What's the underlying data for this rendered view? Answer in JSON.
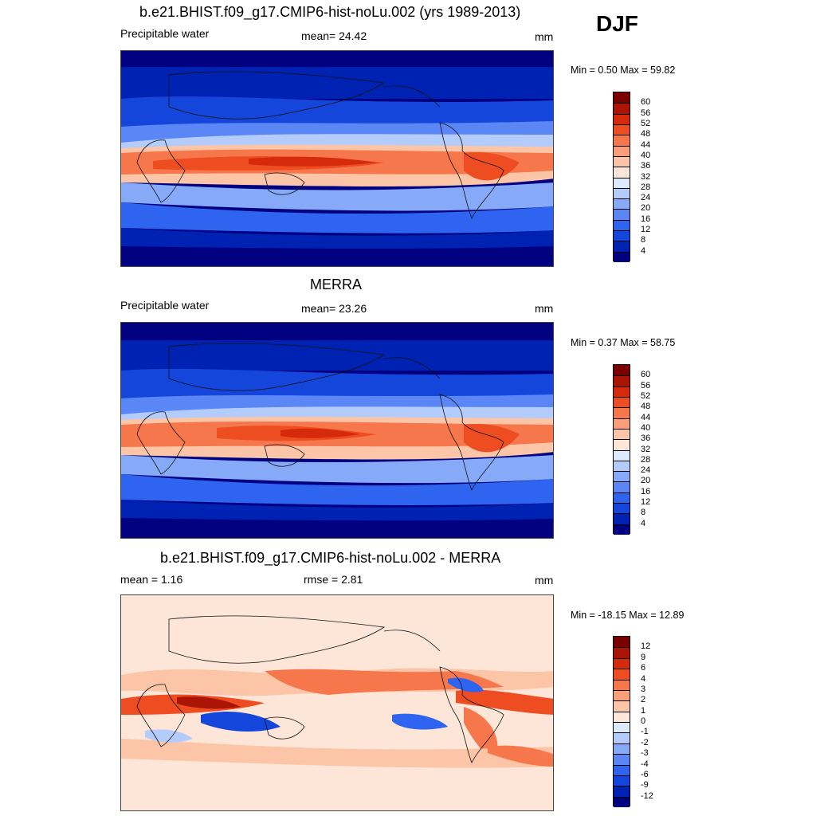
{
  "season": "DJF",
  "panels": [
    {
      "id": "model",
      "title": "b.e21.BHIST.f09_g17.CMIP6-hist-noLu.002 (yrs 1989-2013)",
      "left_label": "Precipitable water",
      "center_label": "mean=  24.42",
      "right_label": "mm",
      "minmax": "Min =   0.50 Max =  59.82",
      "colorbar": {
        "colors": [
          "#000080",
          "#0022b3",
          "#1446dc",
          "#2e64f0",
          "#5a87f5",
          "#86a9f8",
          "#b3ccfb",
          "#dde9fd",
          "#fde6d8",
          "#fcc5a8",
          "#fb9f78",
          "#f7774c",
          "#ee4d22",
          "#d52a0b",
          "#aa1505",
          "#7a0000"
        ],
        "labels": [
          "4",
          "8",
          "12",
          "16",
          "20",
          "24",
          "28",
          "32",
          "36",
          "40",
          "44",
          "48",
          "52",
          "56",
          "60"
        ]
      }
    },
    {
      "id": "obs",
      "title": "MERRA",
      "left_label": "Precipitable water",
      "center_label": "mean=  23.26",
      "right_label": "mm",
      "minmax": "Min =   0.37 Max =  58.75",
      "colorbar": {
        "colors": [
          "#000080",
          "#0022b3",
          "#1446dc",
          "#2e64f0",
          "#5a87f5",
          "#86a9f8",
          "#b3ccfb",
          "#dde9fd",
          "#fde6d8",
          "#fcc5a8",
          "#fb9f78",
          "#f7774c",
          "#ee4d22",
          "#d52a0b",
          "#aa1505",
          "#7a0000"
        ],
        "labels": [
          "4",
          "8",
          "12",
          "16",
          "20",
          "24",
          "28",
          "32",
          "36",
          "40",
          "44",
          "48",
          "52",
          "56",
          "60"
        ]
      }
    },
    {
      "id": "diff",
      "title": "b.e21.BHIST.f09_g17.CMIP6-hist-noLu.002 - MERRA",
      "left_label": "mean =   1.16",
      "center_label": "rmse =   2.81",
      "right_label": "mm",
      "minmax": "Min = -18.15 Max =  12.89",
      "colorbar": {
        "colors": [
          "#000080",
          "#0022b3",
          "#1446dc",
          "#2e64f0",
          "#5a87f5",
          "#86a9f8",
          "#b3ccfb",
          "#dde9fd",
          "#fde6d8",
          "#fcc5a8",
          "#fb9f78",
          "#f7774c",
          "#ee4d22",
          "#d52a0b",
          "#aa1505",
          "#7a0000"
        ],
        "labels": [
          "-12",
          "-9",
          "-6",
          "-4",
          "-3",
          "-2",
          "-1",
          "0",
          "1",
          "2",
          "3",
          "4",
          "6",
          "9",
          "12"
        ]
      }
    }
  ]
}
